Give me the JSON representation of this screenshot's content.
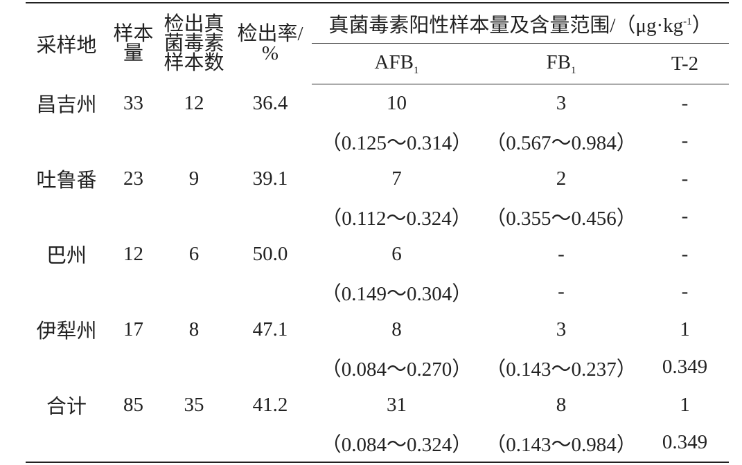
{
  "header": {
    "region": "采样地",
    "samples": [
      "样本",
      "量"
    ],
    "detected": [
      "检出真",
      "菌毒素",
      "样本数"
    ],
    "rate": [
      "检出率/",
      "%"
    ],
    "group": {
      "text": "真菌毒素阳性样本量及含量范围/（μg·kg",
      "sup": "-1",
      "tail": "）"
    },
    "afb1": {
      "text": "AFB",
      "sub": "1"
    },
    "fb1": {
      "text": "FB",
      "sub": "1"
    },
    "t2": "T-2"
  },
  "groups": [
    {
      "region": "昌吉州",
      "samples": 33,
      "detected": 12,
      "rate": "36.4",
      "counts": [
        10,
        3,
        "-"
      ],
      "ranges": [
        "（0.125～0.314）",
        "（0.567～0.984）",
        "-"
      ]
    },
    {
      "region": "吐鲁番",
      "samples": 23,
      "detected": 9,
      "rate": "39.1",
      "counts": [
        7,
        2,
        "-"
      ],
      "ranges": [
        "（0.112～0.324）",
        "（0.355～0.456）",
        "-"
      ]
    },
    {
      "region": "巴州",
      "samples": 12,
      "detected": 6,
      "rate": "50.0",
      "counts": [
        6,
        "-",
        "-"
      ],
      "ranges": [
        "（0.149～0.304）",
        "-",
        "-"
      ]
    },
    {
      "region": "伊犁州",
      "samples": 17,
      "detected": 8,
      "rate": "47.1",
      "counts": [
        8,
        3,
        1
      ],
      "ranges": [
        "（0.084～0.270）",
        "（0.143～0.237）",
        "0.349"
      ]
    },
    {
      "region": "合计",
      "samples": 85,
      "detected": 35,
      "rate": "41.2",
      "counts": [
        31,
        8,
        1
      ],
      "ranges": [
        "（0.084～0.324）",
        "（0.143～0.984）",
        "0.349"
      ]
    }
  ]
}
